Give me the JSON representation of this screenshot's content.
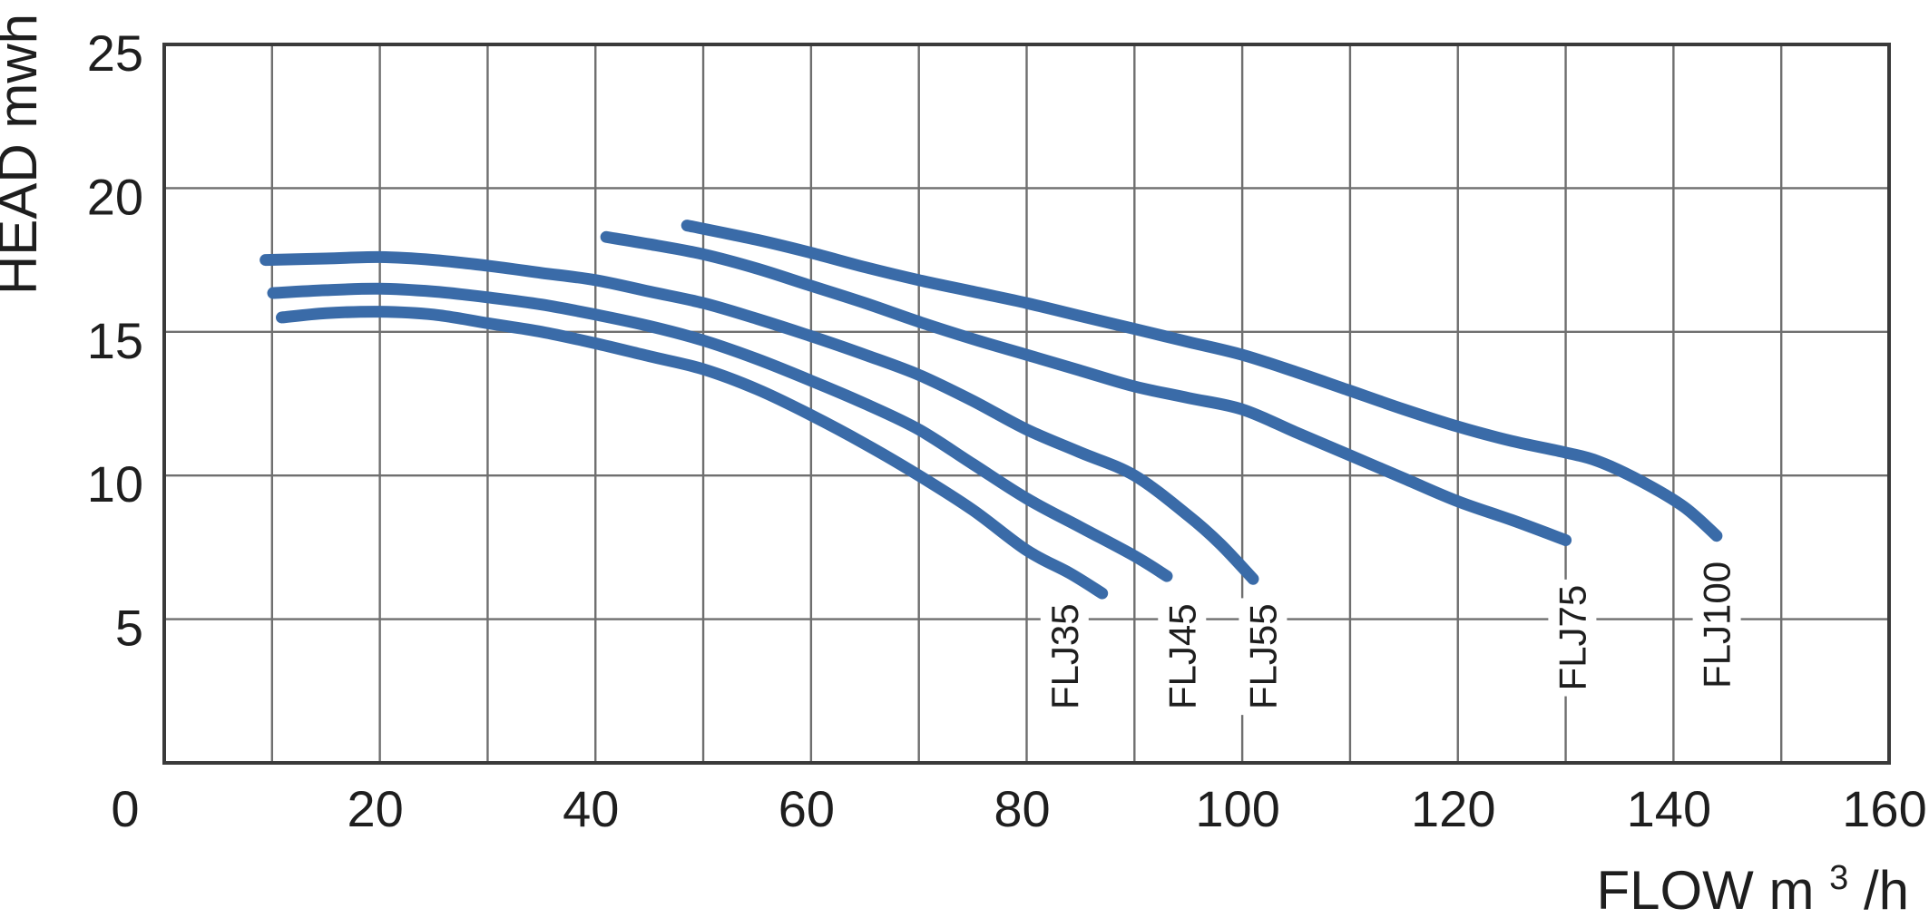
{
  "axes": {
    "y_title": "HEAD mwh",
    "x_title_pre": "FLOW m",
    "x_title_sup": "3",
    "x_title_post": "/h"
  },
  "chart_data": {
    "type": "line",
    "xlabel": "FLOW m3/h",
    "ylabel": "HEAD mwh",
    "x_range": [
      0,
      160
    ],
    "y_range": [
      0,
      25
    ],
    "x_grid_step": 10,
    "y_grid_step": 5,
    "x_tick_labels": [
      "0",
      "20",
      "40",
      "60",
      "80",
      "100",
      "120",
      "140",
      "160"
    ],
    "y_tick_labels": [
      "5",
      "10",
      "15",
      "20",
      "25"
    ],
    "grid": true,
    "legend_position": "labels-at-curve-ends",
    "colors": {
      "curve": "#3a6ba8",
      "grid": "#6f6f6f",
      "border": "#3a3a3a",
      "text": "#1e1e1e",
      "label_mask": "#ffffff"
    },
    "series": [
      {
        "name": "FLJ35",
        "label_pos": {
          "flow": 83.5,
          "head": 3.7
        },
        "points": [
          [
            10.9,
            15.5
          ],
          [
            15,
            15.65
          ],
          [
            20,
            15.7
          ],
          [
            25,
            15.6
          ],
          [
            30,
            15.3
          ],
          [
            35,
            15.0
          ],
          [
            40,
            14.6
          ],
          [
            45,
            14.15
          ],
          [
            50,
            13.7
          ],
          [
            55,
            13.0
          ],
          [
            60,
            12.1
          ],
          [
            65,
            11.1
          ],
          [
            70,
            10.0
          ],
          [
            75,
            8.8
          ],
          [
            80,
            7.4
          ],
          [
            84,
            6.6
          ],
          [
            87,
            5.9
          ]
        ]
      },
      {
        "name": "FLJ45",
        "label_pos": {
          "flow": 94.4,
          "head": 3.7
        },
        "points": [
          [
            10.1,
            16.35
          ],
          [
            15,
            16.45
          ],
          [
            20,
            16.5
          ],
          [
            25,
            16.4
          ],
          [
            30,
            16.2
          ],
          [
            35,
            15.95
          ],
          [
            40,
            15.6
          ],
          [
            45,
            15.2
          ],
          [
            50,
            14.7
          ],
          [
            55,
            14.05
          ],
          [
            60,
            13.3
          ],
          [
            65,
            12.5
          ],
          [
            70,
            11.6
          ],
          [
            75,
            10.4
          ],
          [
            80,
            9.2
          ],
          [
            85,
            8.2
          ],
          [
            90,
            7.2
          ],
          [
            93,
            6.5
          ]
        ]
      },
      {
        "name": "FLJ55",
        "label_pos": {
          "flow": 101.9,
          "head": 3.7
        },
        "points": [
          [
            9.4,
            17.5
          ],
          [
            15,
            17.55
          ],
          [
            20,
            17.6
          ],
          [
            25,
            17.5
          ],
          [
            30,
            17.3
          ],
          [
            35,
            17.05
          ],
          [
            40,
            16.8
          ],
          [
            45,
            16.4
          ],
          [
            50,
            16.0
          ],
          [
            55,
            15.45
          ],
          [
            60,
            14.85
          ],
          [
            65,
            14.2
          ],
          [
            70,
            13.5
          ],
          [
            75,
            12.6
          ],
          [
            80,
            11.6
          ],
          [
            85,
            10.8
          ],
          [
            90,
            10.0
          ],
          [
            95,
            8.6
          ],
          [
            98,
            7.6
          ],
          [
            101,
            6.4
          ]
        ]
      },
      {
        "name": "FLJ75",
        "label_pos": {
          "flow": 130.6,
          "head": 4.35
        },
        "points": [
          [
            41,
            18.3
          ],
          [
            45,
            18.05
          ],
          [
            50,
            17.7
          ],
          [
            55,
            17.2
          ],
          [
            60,
            16.6
          ],
          [
            65,
            16.0
          ],
          [
            70,
            15.35
          ],
          [
            75,
            14.75
          ],
          [
            80,
            14.2
          ],
          [
            85,
            13.65
          ],
          [
            90,
            13.1
          ],
          [
            95,
            12.7
          ],
          [
            100,
            12.3
          ],
          [
            105,
            11.5
          ],
          [
            110,
            10.7
          ],
          [
            115,
            9.9
          ],
          [
            120,
            9.1
          ],
          [
            125,
            8.45
          ],
          [
            130,
            7.75
          ]
        ]
      },
      {
        "name": "FLJ100",
        "label_pos": {
          "flow": 144.0,
          "head": 4.8
        },
        "points": [
          [
            48.5,
            18.7
          ],
          [
            55,
            18.2
          ],
          [
            60,
            17.75
          ],
          [
            65,
            17.25
          ],
          [
            70,
            16.8
          ],
          [
            75,
            16.4
          ],
          [
            80,
            16.0
          ],
          [
            85,
            15.55
          ],
          [
            90,
            15.1
          ],
          [
            95,
            14.65
          ],
          [
            100,
            14.2
          ],
          [
            105,
            13.6
          ],
          [
            110,
            12.95
          ],
          [
            115,
            12.3
          ],
          [
            120,
            11.7
          ],
          [
            125,
            11.2
          ],
          [
            130,
            10.8
          ],
          [
            133,
            10.5
          ],
          [
            137,
            9.8
          ],
          [
            141,
            8.9
          ],
          [
            144,
            7.9
          ]
        ]
      }
    ]
  }
}
